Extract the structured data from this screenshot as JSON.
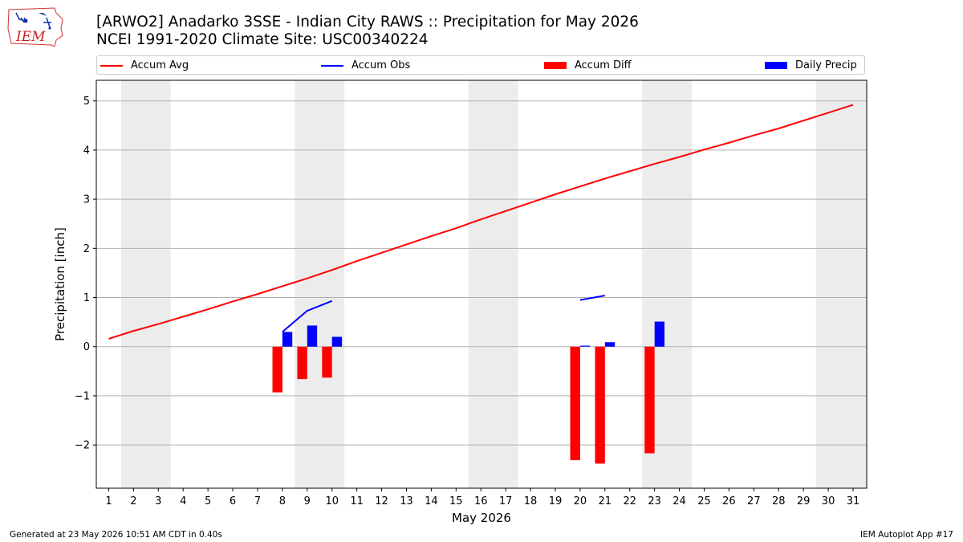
{
  "header": {
    "title_line1": "[ARWO2] Anadarko 3SSE - Indian City RAWS :: Precipitation for May 2026",
    "title_line2": "NCEI 1991-2020 Climate Site: USC00340224",
    "logo_text": "IEM"
  },
  "legend": {
    "items": [
      {
        "label": "Accum Avg",
        "kind": "line",
        "color": "#ff0000"
      },
      {
        "label": "Accum Obs",
        "kind": "line",
        "color": "#0000ff"
      },
      {
        "label": "Accum Diff",
        "kind": "box",
        "color": "#ff0000"
      },
      {
        "label": "Daily Precip",
        "kind": "box",
        "color": "#0000ff"
      }
    ]
  },
  "footer": {
    "left": "Generated at 23 May 2026 10:51 AM CDT in 0.40s",
    "right": "IEM Autoplot App #17"
  },
  "chart_data": {
    "type": "bar",
    "xlabel": "May 2026",
    "ylabel": "Precipitation [inch]",
    "x": [
      1,
      2,
      3,
      4,
      5,
      6,
      7,
      8,
      9,
      10,
      11,
      12,
      13,
      14,
      15,
      16,
      17,
      18,
      19,
      20,
      21,
      22,
      23,
      24,
      25,
      26,
      27,
      28,
      29,
      30,
      31
    ],
    "xlim": [
      0.5,
      31.55
    ],
    "ylim": [
      -2.88,
      5.42
    ],
    "yticks": [
      -2,
      -1,
      0,
      1,
      2,
      3,
      4,
      5
    ],
    "grid": "horizontal",
    "weekend_shading": [
      [
        1.5,
        3.5
      ],
      [
        8.5,
        10.5
      ],
      [
        15.5,
        17.5
      ],
      [
        22.5,
        24.5
      ],
      [
        29.5,
        31.55
      ]
    ],
    "series": [
      {
        "name": "Accum Avg",
        "type": "line",
        "color": "#ff0000",
        "values": [
          0.16,
          0.32,
          0.46,
          0.61,
          0.76,
          0.92,
          1.07,
          1.23,
          1.39,
          1.56,
          1.74,
          1.91,
          2.08,
          2.25,
          2.41,
          2.59,
          2.76,
          2.93,
          3.1,
          3.26,
          3.42,
          3.57,
          3.72,
          3.86,
          4.01,
          4.15,
          4.3,
          4.44,
          4.6,
          4.76,
          4.92
        ]
      },
      {
        "name": "Accum Obs",
        "type": "line",
        "color": "#0000ff",
        "segments": [
          {
            "x": [
              8,
              9,
              10
            ],
            "y": [
              0.3,
              0.73,
              0.93
            ]
          },
          {
            "x": [
              20,
              21
            ],
            "y": [
              0.95,
              1.04
            ]
          }
        ]
      },
      {
        "name": "Accum Diff",
        "type": "bar",
        "color": "#ff0000",
        "x": [
          8,
          9,
          10,
          20,
          21,
          23
        ],
        "values": [
          -0.93,
          -0.66,
          -0.63,
          -2.31,
          -2.38,
          -2.17
        ]
      },
      {
        "name": "Daily Precip",
        "type": "bar",
        "color": "#0000ff",
        "x": [
          8,
          9,
          10,
          20,
          21,
          23
        ],
        "values": [
          0.3,
          0.43,
          0.2,
          0.02,
          0.09,
          0.51
        ]
      }
    ]
  }
}
